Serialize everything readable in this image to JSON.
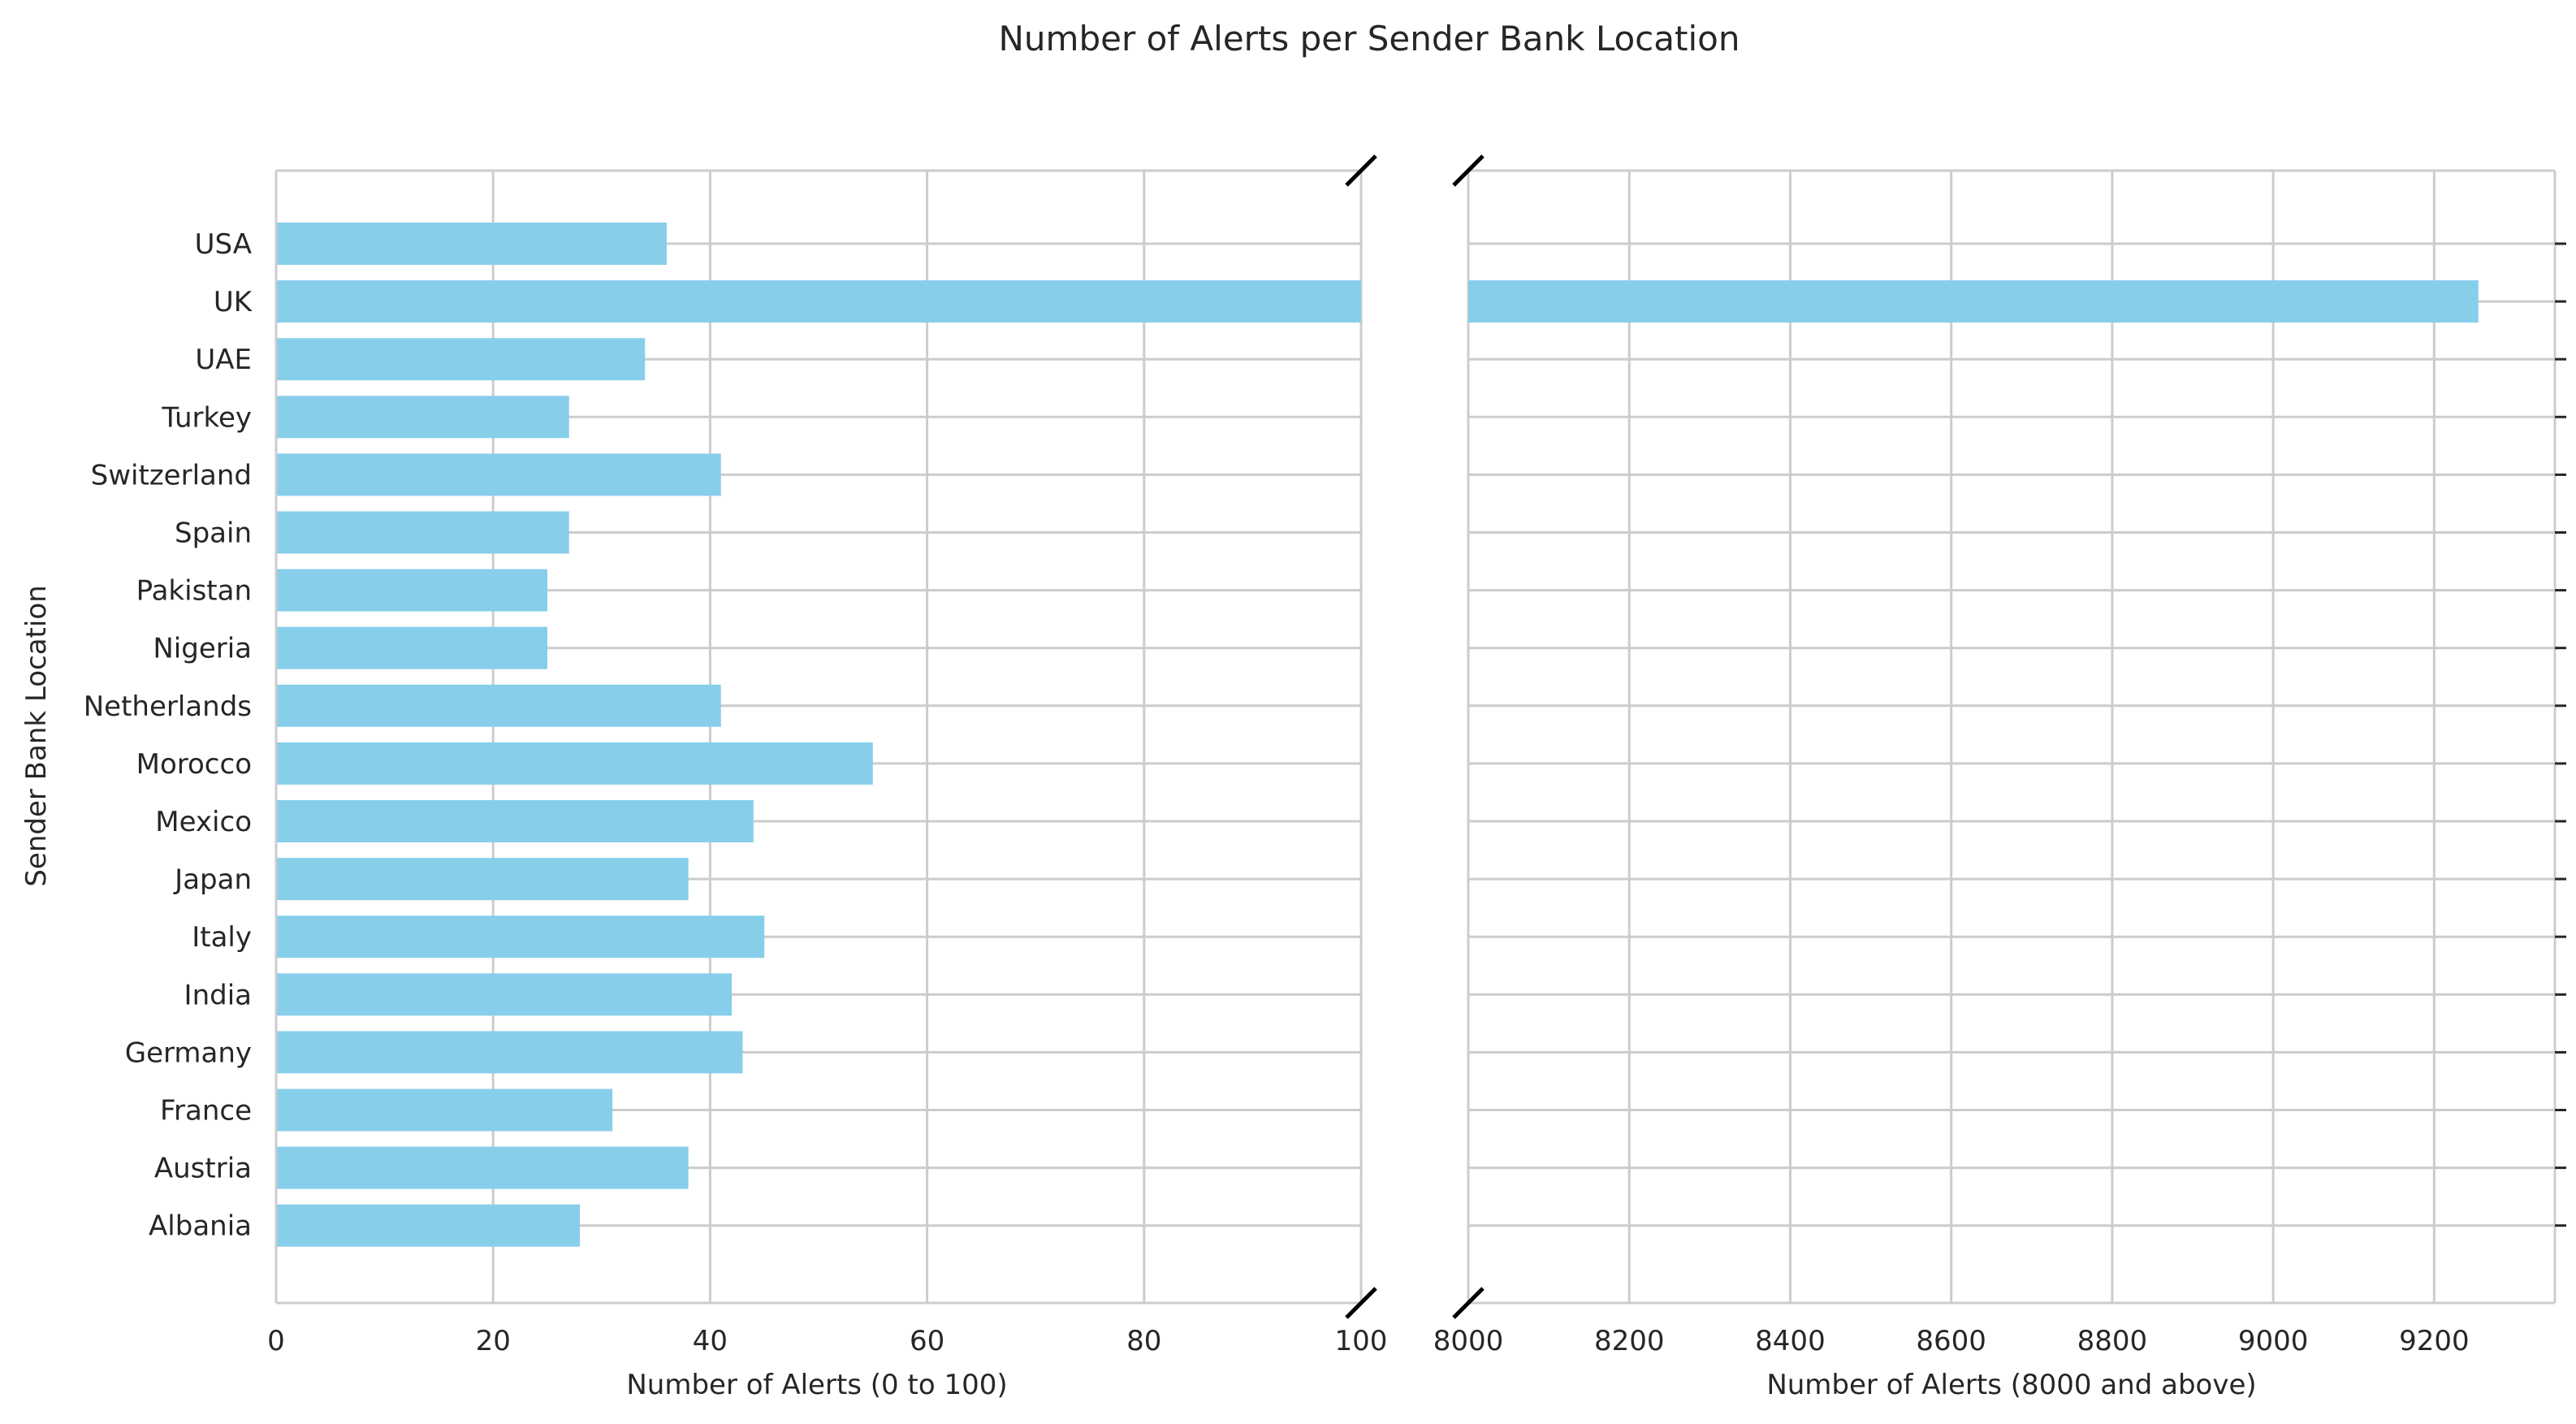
{
  "chart_data": {
    "type": "bar",
    "orientation": "horizontal",
    "broken_axis": true,
    "title": "Number of Alerts per Sender Bank Location",
    "ylabel": "Sender Bank Location",
    "categories": [
      "USA",
      "UK",
      "UAE",
      "Turkey",
      "Switzerland",
      "Spain",
      "Pakistan",
      "Nigeria",
      "Netherlands",
      "Morocco",
      "Mexico",
      "Japan",
      "Italy",
      "India",
      "Germany",
      "France",
      "Austria",
      "Albania"
    ],
    "values": [
      36,
      9255,
      34,
      27,
      41,
      27,
      25,
      25,
      41,
      55,
      44,
      38,
      45,
      42,
      43,
      31,
      38,
      28
    ],
    "bar_color": "#87ceeb",
    "grid": true,
    "panels": [
      {
        "xlabel": "Number of Alerts (0 to 100)",
        "xlim": [
          0,
          100
        ],
        "xticks": [
          0,
          20,
          40,
          60,
          80,
          100
        ]
      },
      {
        "xlabel": "Number of Alerts (8000 and above)",
        "xlim": [
          8000,
          9350
        ],
        "xticks": [
          8000,
          8200,
          8400,
          8600,
          8800,
          9000,
          9200
        ]
      }
    ]
  }
}
